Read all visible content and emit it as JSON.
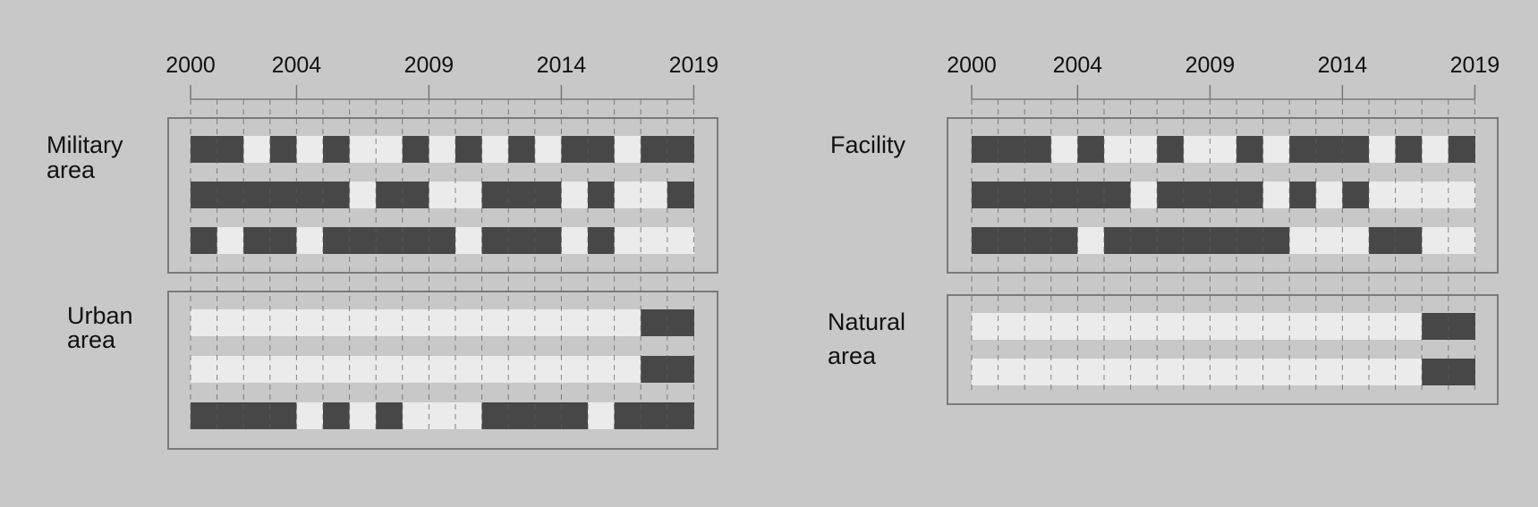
{
  "colors": {
    "background": "#c8c8c8",
    "cell_dark": "#474747",
    "cell_light": "#ebebeb",
    "frame": "#7a7a7a",
    "axis": "#777777",
    "gridline": "#5a5a5a"
  },
  "chart_data": [
    {
      "type": "heatmap",
      "title": "",
      "x": [
        "2000",
        "2001",
        "2002",
        "2003",
        "2004",
        "2005",
        "2006",
        "2007",
        "2008",
        "2009",
        "2010",
        "2011",
        "2012",
        "2013",
        "2014",
        "2015",
        "2016",
        "2017",
        "2018"
      ],
      "tick_labels": [
        "2000",
        "2004",
        "2009",
        "2014",
        "2019"
      ],
      "groups": [
        {
          "label": [
            "Military",
            "area"
          ],
          "rows": [
            [
              1,
              1,
              0,
              1,
              0,
              1,
              0,
              0,
              1,
              0,
              1,
              0,
              1,
              0,
              1,
              1,
              0,
              1,
              1
            ],
            [
              1,
              1,
              1,
              1,
              1,
              1,
              0,
              1,
              1,
              0,
              0,
              1,
              1,
              1,
              0,
              1,
              0,
              0,
              1
            ],
            [
              1,
              0,
              1,
              1,
              0,
              1,
              1,
              1,
              1,
              1,
              0,
              1,
              1,
              1,
              0,
              1,
              0,
              0,
              0
            ]
          ]
        },
        {
          "label": [
            "Urban",
            "area"
          ],
          "rows": [
            [
              0,
              0,
              0,
              0,
              0,
              0,
              0,
              0,
              0,
              0,
              0,
              0,
              0,
              0,
              0,
              0,
              0,
              1,
              1
            ],
            [
              0,
              0,
              0,
              0,
              0,
              0,
              0,
              0,
              0,
              0,
              0,
              0,
              0,
              0,
              0,
              0,
              0,
              1,
              1
            ],
            [
              1,
              1,
              1,
              1,
              0,
              1,
              0,
              1,
              0,
              0,
              0,
              1,
              1,
              1,
              1,
              0,
              1,
              1,
              1
            ]
          ]
        }
      ]
    },
    {
      "type": "heatmap",
      "title": "",
      "x": [
        "2000",
        "2001",
        "2002",
        "2003",
        "2004",
        "2005",
        "2006",
        "2007",
        "2008",
        "2009",
        "2010",
        "2011",
        "2012",
        "2013",
        "2014",
        "2015",
        "2016",
        "2017",
        "2018"
      ],
      "tick_labels": [
        "2000",
        "2004",
        "2009",
        "2014",
        "2019"
      ],
      "groups": [
        {
          "label": [
            "Facility"
          ],
          "rows": [
            [
              1,
              1,
              1,
              0,
              1,
              0,
              0,
              1,
              0,
              0,
              1,
              0,
              1,
              1,
              1,
              0,
              1,
              0,
              1
            ],
            [
              1,
              1,
              1,
              1,
              1,
              1,
              0,
              1,
              1,
              1,
              1,
              0,
              1,
              0,
              1,
              0,
              0,
              0,
              0
            ],
            [
              1,
              1,
              1,
              1,
              0,
              1,
              1,
              1,
              1,
              1,
              1,
              1,
              0,
              0,
              0,
              1,
              1,
              0,
              0
            ]
          ]
        },
        {
          "label": [
            "Natural",
            "area"
          ],
          "rows": [
            [
              0,
              0,
              0,
              0,
              0,
              0,
              0,
              0,
              0,
              0,
              0,
              0,
              0,
              0,
              0,
              0,
              0,
              1,
              1
            ],
            [
              0,
              0,
              0,
              0,
              0,
              0,
              0,
              0,
              0,
              0,
              0,
              0,
              0,
              0,
              0,
              0,
              0,
              1,
              1
            ]
          ]
        }
      ]
    }
  ]
}
